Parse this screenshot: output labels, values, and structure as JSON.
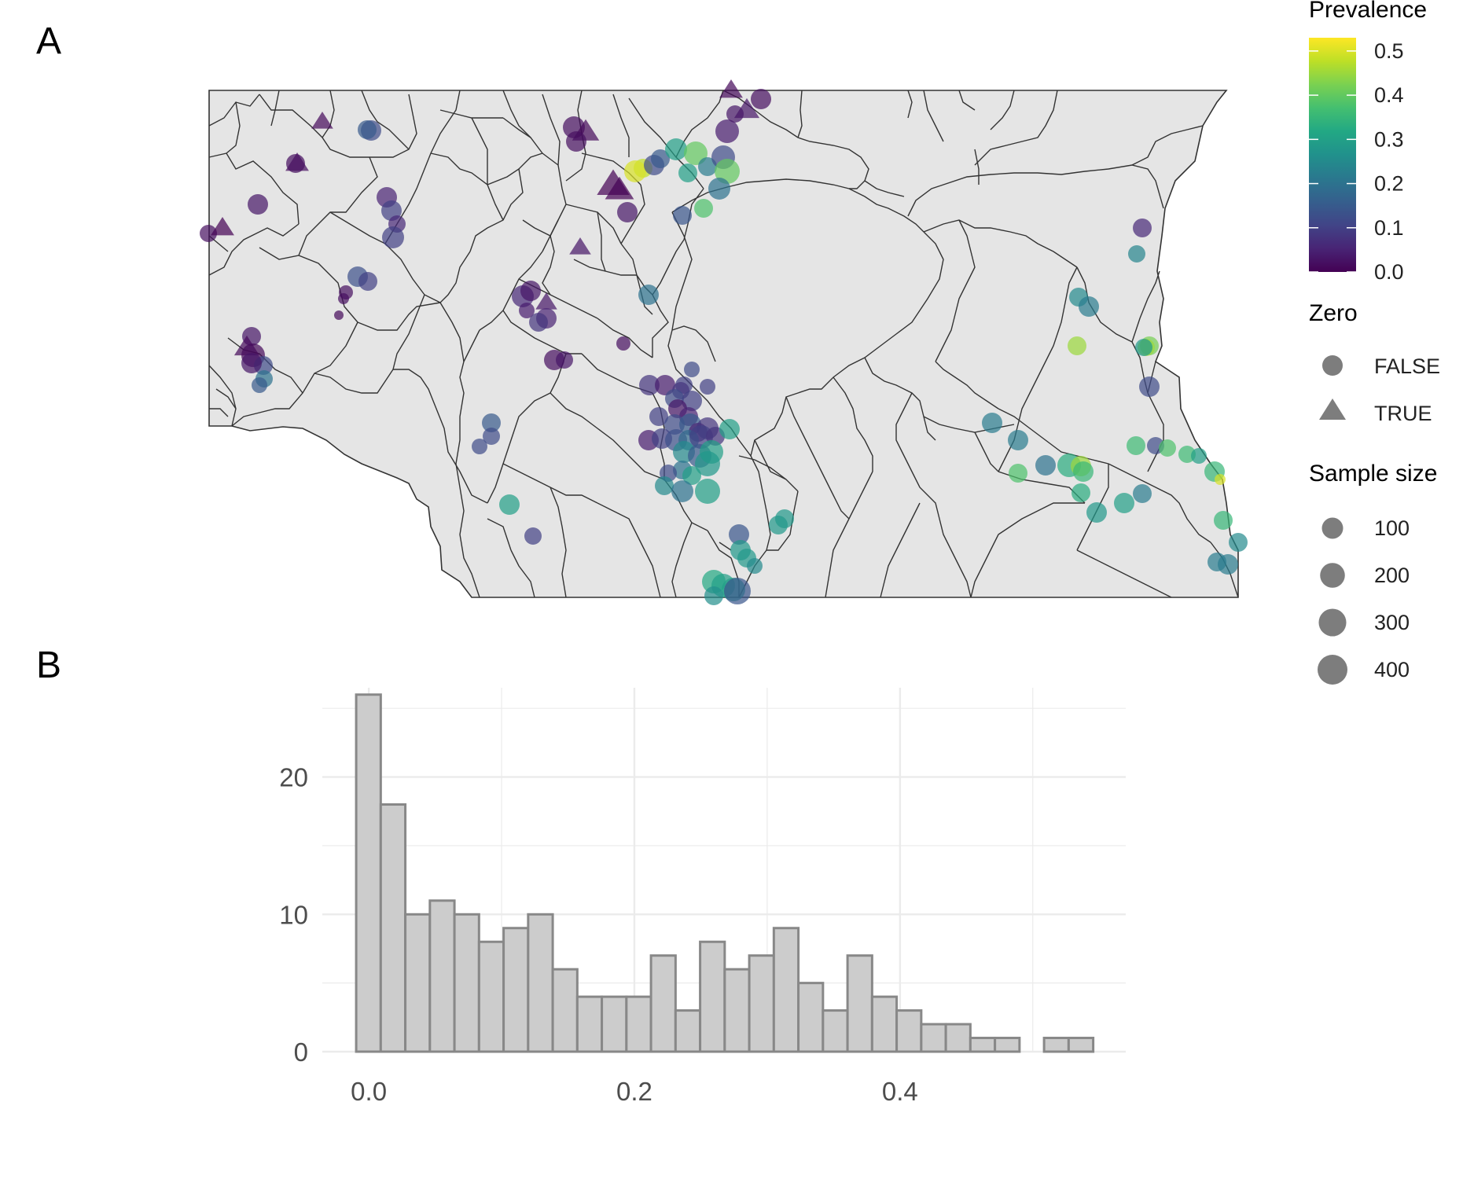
{
  "panels": {
    "a_label": "A",
    "b_label": "B"
  },
  "map": {
    "land_fill": "#e5e5e5",
    "border_color": "#333333",
    "colorscale": "viridis",
    "point_opacity": 0.7
  },
  "legend": {
    "prevalence": {
      "title": "Prevalence",
      "ticks": [
        "0.0",
        "0.1",
        "0.2",
        "0.3",
        "0.4",
        "0.5"
      ],
      "tick_values": [
        0,
        0.1,
        0.2,
        0.3,
        0.4,
        0.5
      ],
      "range": [
        0,
        0.53
      ]
    },
    "zero": {
      "title": "Zero",
      "items": [
        {
          "label": "FALSE",
          "shape": "circle-icon"
        },
        {
          "label": "TRUE",
          "shape": "triangle-icon"
        }
      ]
    },
    "sample_size": {
      "title": "Sample size",
      "items": [
        {
          "label": "100",
          "n": 100
        },
        {
          "label": "200",
          "n": 200
        },
        {
          "label": "300",
          "n": 300
        },
        {
          "label": "400",
          "n": 400
        }
      ]
    }
  },
  "chart_data": {
    "type": "bar",
    "subtype": "histogram",
    "title": "",
    "xlabel": "",
    "ylabel": "",
    "bin_width": 0.0185,
    "bin_starts": [
      -0.0095,
      0.009,
      0.0275,
      0.046,
      0.0645,
      0.083,
      0.1015,
      0.12,
      0.1385,
      0.157,
      0.1755,
      0.194,
      0.2125,
      0.231,
      0.2495,
      0.268,
      0.2865,
      0.305,
      0.3235,
      0.342,
      0.3605,
      0.379,
      0.3975,
      0.416,
      0.4345,
      0.453,
      0.4715,
      0.49,
      0.5085,
      0.527
    ],
    "values": [
      26,
      18,
      10,
      11,
      10,
      8,
      9,
      10,
      6,
      4,
      4,
      4,
      7,
      3,
      8,
      6,
      7,
      9,
      5,
      3,
      7,
      4,
      3,
      2,
      2,
      1,
      1,
      0,
      1,
      1
    ],
    "x_ticks": [
      "0.0",
      "0.2",
      "0.4"
    ],
    "x_tick_values": [
      0,
      0.2,
      0.4
    ],
    "y_ticks": [
      "0",
      "10",
      "20"
    ],
    "y_tick_values": [
      0,
      10,
      20
    ],
    "xlim": [
      -0.035,
      0.57
    ],
    "ylim": [
      0,
      26.5
    ],
    "grid": true,
    "bar_fill": "#cccccc",
    "bar_stroke": "#888888"
  }
}
